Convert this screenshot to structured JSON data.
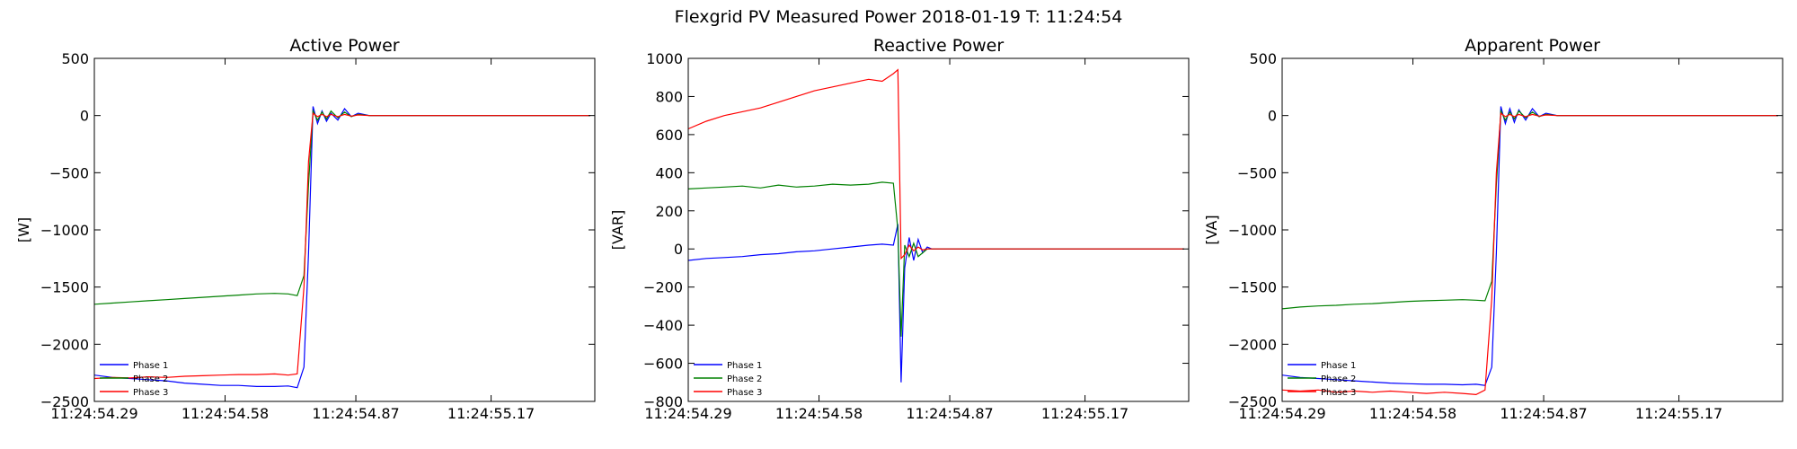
{
  "suptitle": "Flexgrid PV Measured Power 2018-01-19 T: 11:24:54",
  "series_names": [
    "Phase 1",
    "Phase 2",
    "Phase 3"
  ],
  "colors": {
    "Phase 1": "#0000ff",
    "Phase 2": "#008000",
    "Phase 3": "#ff0000"
  },
  "chart_data": [
    {
      "type": "line",
      "title": "Active Power",
      "xlabel": "",
      "ylabel": "[W]",
      "xlim": [
        54.29,
        55.4
      ],
      "ylim": [
        -2500,
        500
      ],
      "yticks": [
        500,
        0,
        -500,
        -1000,
        -1500,
        -2000,
        -2500
      ],
      "ytick_labels": [
        "500",
        "0",
        "−500",
        "−1000",
        "−1500",
        "−2000",
        "−2500"
      ],
      "xticks": [
        54.29,
        54.58,
        54.87,
        55.17
      ],
      "xtick_labels": [
        "11:24:54.29",
        "11:24:54.58",
        "11:24:54.87",
        "11:24:55.17"
      ],
      "grid": false,
      "legend": "lower-left",
      "series": [
        {
          "name": "Phase 1",
          "x": [
            54.29,
            54.33,
            54.37,
            54.41,
            54.45,
            54.49,
            54.53,
            54.57,
            54.61,
            54.65,
            54.69,
            54.72,
            54.74,
            54.755,
            54.765,
            54.775,
            54.785,
            54.795,
            54.805,
            54.815,
            54.83,
            54.845,
            54.86,
            54.875,
            54.9,
            55.0,
            55.1,
            55.2,
            55.3,
            55.39
          ],
          "y": [
            -2270,
            -2290,
            -2300,
            -2310,
            -2320,
            -2340,
            -2350,
            -2360,
            -2360,
            -2370,
            -2370,
            -2365,
            -2380,
            -2200,
            -1200,
            80,
            -70,
            40,
            -50,
            20,
            -40,
            60,
            -10,
            20,
            0,
            0,
            0,
            0,
            0,
            0
          ]
        },
        {
          "name": "Phase 2",
          "x": [
            54.29,
            54.33,
            54.37,
            54.41,
            54.45,
            54.49,
            54.53,
            54.57,
            54.61,
            54.65,
            54.69,
            54.72,
            54.74,
            54.755,
            54.765,
            54.775,
            54.785,
            54.795,
            54.805,
            54.815,
            54.83,
            54.845,
            54.86,
            54.875,
            54.9,
            55.0,
            55.1,
            55.2,
            55.3,
            55.39
          ],
          "y": [
            -1650,
            -1640,
            -1630,
            -1620,
            -1610,
            -1600,
            -1590,
            -1580,
            -1570,
            -1560,
            -1555,
            -1560,
            -1575,
            -1400,
            -600,
            40,
            -40,
            30,
            -30,
            40,
            -20,
            30,
            -10,
            10,
            0,
            0,
            0,
            0,
            0,
            0
          ]
        },
        {
          "name": "Phase 3",
          "x": [
            54.29,
            54.33,
            54.37,
            54.41,
            54.45,
            54.49,
            54.53,
            54.57,
            54.61,
            54.65,
            54.69,
            54.72,
            54.74,
            54.755,
            54.765,
            54.775,
            54.785,
            54.795,
            54.805,
            54.815,
            54.83,
            54.845,
            54.86,
            54.875,
            54.9,
            55.0,
            55.1,
            55.2,
            55.3,
            55.39
          ],
          "y": [
            -2300,
            -2290,
            -2295,
            -2285,
            -2290,
            -2280,
            -2275,
            -2270,
            -2265,
            -2265,
            -2260,
            -2270,
            -2260,
            -1500,
            -400,
            20,
            -10,
            10,
            -10,
            10,
            -10,
            10,
            -5,
            5,
            0,
            0,
            0,
            0,
            0,
            0
          ]
        }
      ]
    },
    {
      "type": "line",
      "title": "Reactive Power",
      "xlabel": "",
      "ylabel": "[VAR]",
      "xlim": [
        54.29,
        55.4
      ],
      "ylim": [
        -800,
        1000
      ],
      "yticks": [
        1000,
        800,
        600,
        400,
        200,
        0,
        -200,
        -400,
        -600,
        -800
      ],
      "ytick_labels": [
        "1000",
        "800",
        "600",
        "400",
        "200",
        "0",
        "−200",
        "−400",
        "−600",
        "−800"
      ],
      "xticks": [
        54.29,
        54.58,
        54.87,
        55.17
      ],
      "xtick_labels": [
        "11:24:54.29",
        "11:24:54.58",
        "11:24:54.87",
        "11:24:55.17"
      ],
      "grid": false,
      "legend": "lower-left",
      "series": [
        {
          "name": "Phase 1",
          "x": [
            54.29,
            54.33,
            54.37,
            54.41,
            54.45,
            54.49,
            54.53,
            54.57,
            54.61,
            54.65,
            54.69,
            54.72,
            54.745,
            54.755,
            54.762,
            54.77,
            54.78,
            54.79,
            54.8,
            54.81,
            54.82,
            54.83,
            54.84,
            54.86,
            54.9,
            55.0,
            55.1,
            55.2,
            55.3,
            55.39
          ],
          "y": [
            -60,
            -50,
            -45,
            -40,
            -30,
            -25,
            -15,
            -10,
            0,
            10,
            20,
            25,
            20,
            130,
            -700,
            -100,
            60,
            -60,
            50,
            -20,
            10,
            0,
            0,
            0,
            0,
            0,
            0,
            0,
            0,
            0
          ]
        },
        {
          "name": "Phase 2",
          "x": [
            54.29,
            54.33,
            54.37,
            54.41,
            54.45,
            54.49,
            54.53,
            54.57,
            54.61,
            54.65,
            54.69,
            54.72,
            54.745,
            54.755,
            54.762,
            54.77,
            54.78,
            54.79,
            54.8,
            54.81,
            54.82,
            54.83,
            54.84,
            54.86,
            54.9,
            55.0,
            55.1,
            55.2,
            55.3,
            55.39
          ],
          "y": [
            315,
            320,
            325,
            330,
            320,
            335,
            325,
            330,
            340,
            335,
            340,
            350,
            345,
            100,
            -460,
            20,
            -40,
            30,
            -40,
            -20,
            0,
            0,
            0,
            0,
            0,
            0,
            0,
            0,
            0,
            0
          ]
        },
        {
          "name": "Phase 3",
          "x": [
            54.29,
            54.33,
            54.37,
            54.41,
            54.45,
            54.49,
            54.53,
            54.57,
            54.61,
            54.65,
            54.69,
            54.72,
            54.745,
            54.755,
            54.762,
            54.77,
            54.78,
            54.79,
            54.8,
            54.81,
            54.82,
            54.83,
            54.84,
            54.86,
            54.9,
            55.0,
            55.1,
            55.2,
            55.3,
            55.39
          ],
          "y": [
            630,
            670,
            700,
            720,
            740,
            770,
            800,
            830,
            850,
            870,
            890,
            880,
            920,
            940,
            -50,
            -30,
            20,
            -10,
            10,
            -5,
            0,
            0,
            0,
            0,
            0,
            0,
            0,
            0,
            0,
            0
          ]
        }
      ]
    },
    {
      "type": "line",
      "title": "Apparent Power",
      "xlabel": "",
      "ylabel": "[VA]",
      "xlim": [
        54.29,
        55.4
      ],
      "ylim": [
        -2500,
        500
      ],
      "yticks": [
        500,
        0,
        -500,
        -1000,
        -1500,
        -2000,
        -2500
      ],
      "ytick_labels": [
        "500",
        "0",
        "−500",
        "−1000",
        "−1500",
        "−2000",
        "−2500"
      ],
      "xticks": [
        54.29,
        54.58,
        54.87,
        55.17
      ],
      "xtick_labels": [
        "11:24:54.29",
        "11:24:54.58",
        "11:24:54.87",
        "11:24:55.17"
      ],
      "grid": false,
      "legend": "lower-left",
      "series": [
        {
          "name": "Phase 1",
          "x": [
            54.29,
            54.33,
            54.37,
            54.41,
            54.45,
            54.49,
            54.53,
            54.57,
            54.61,
            54.65,
            54.69,
            54.72,
            54.74,
            54.755,
            54.765,
            54.775,
            54.785,
            54.795,
            54.805,
            54.815,
            54.83,
            54.845,
            54.86,
            54.875,
            54.9,
            55.0,
            55.1,
            55.2,
            55.3,
            55.39
          ],
          "y": [
            -2270,
            -2290,
            -2300,
            -2310,
            -2320,
            -2330,
            -2340,
            -2345,
            -2350,
            -2350,
            -2355,
            -2350,
            -2360,
            -2200,
            -1200,
            80,
            -70,
            60,
            -60,
            50,
            -40,
            60,
            -10,
            20,
            0,
            0,
            0,
            0,
            0,
            0
          ]
        },
        {
          "name": "Phase 2",
          "x": [
            54.29,
            54.33,
            54.37,
            54.41,
            54.45,
            54.49,
            54.53,
            54.57,
            54.61,
            54.65,
            54.69,
            54.72,
            54.74,
            54.755,
            54.765,
            54.775,
            54.785,
            54.795,
            54.805,
            54.815,
            54.83,
            54.845,
            54.86,
            54.875,
            54.9,
            55.0,
            55.1,
            55.2,
            55.3,
            55.39
          ],
          "y": [
            -1690,
            -1675,
            -1665,
            -1660,
            -1650,
            -1645,
            -1635,
            -1625,
            -1620,
            -1615,
            -1610,
            -1615,
            -1620,
            -1450,
            -600,
            40,
            -40,
            30,
            -30,
            40,
            -20,
            30,
            -10,
            10,
            0,
            0,
            0,
            0,
            0,
            0
          ]
        },
        {
          "name": "Phase 3",
          "x": [
            54.29,
            54.33,
            54.37,
            54.41,
            54.45,
            54.49,
            54.53,
            54.57,
            54.61,
            54.65,
            54.69,
            54.72,
            54.74,
            54.755,
            54.765,
            54.775,
            54.785,
            54.795,
            54.805,
            54.815,
            54.83,
            54.845,
            54.86,
            54.875,
            54.9,
            55.0,
            55.1,
            55.2,
            55.3,
            55.39
          ],
          "y": [
            -2400,
            -2410,
            -2400,
            -2420,
            -2410,
            -2420,
            -2410,
            -2420,
            -2430,
            -2420,
            -2430,
            -2440,
            -2400,
            -1600,
            -500,
            20,
            -10,
            10,
            -10,
            10,
            -10,
            10,
            -5,
            5,
            0,
            0,
            0,
            0,
            0,
            0
          ]
        }
      ]
    }
  ]
}
